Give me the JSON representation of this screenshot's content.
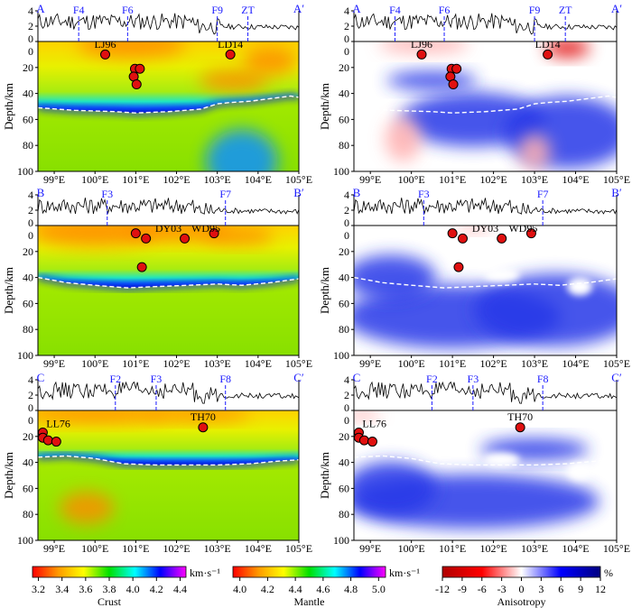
{
  "chart_data": {
    "type": "heatmap",
    "x_axis": {
      "ticks": [
        99,
        100,
        101,
        102,
        103,
        104,
        105
      ],
      "tick_suffix": "°E",
      "xlim": [
        98.6,
        105
      ]
    },
    "y_axis": {
      "label": "Depth/km",
      "ticks": [
        0,
        20,
        40,
        60,
        80,
        100
      ],
      "ylim": [
        0,
        100
      ]
    },
    "topo_axis": {
      "ticks": [
        0,
        2,
        4
      ],
      "ylim": [
        0,
        4
      ]
    },
    "profiles": [
      {
        "start": "A",
        "end": "A′",
        "faults": [
          {
            "name": "F4",
            "lon": 99.6
          },
          {
            "name": "F6",
            "lon": 100.8
          },
          {
            "name": "F9",
            "lon": 103.0
          },
          {
            "name": "ZT",
            "lon": 103.75
          }
        ],
        "events": [
          {
            "lon": 100.25,
            "depth": 10
          },
          {
            "lon": 100.98,
            "depth": 21
          },
          {
            "lon": 101.1,
            "depth": 21
          },
          {
            "lon": 100.95,
            "depth": 27
          },
          {
            "lon": 101.02,
            "depth": 33
          },
          {
            "lon": 103.32,
            "depth": 10
          }
        ],
        "event_labels": [
          {
            "text": "LJ96",
            "lon": 100.25,
            "depth": 2
          },
          {
            "text": "LD14",
            "lon": 103.32,
            "depth": 2
          }
        ],
        "moho": [
          [
            98.6,
            51
          ],
          [
            99.5,
            53
          ],
          [
            100.5,
            54
          ],
          [
            101,
            55
          ],
          [
            101.8,
            54
          ],
          [
            102.6,
            52
          ],
          [
            103.0,
            48
          ],
          [
            103.3,
            47
          ],
          [
            103.8,
            46
          ],
          [
            104.3,
            44
          ],
          [
            104.8,
            42
          ],
          [
            105,
            43
          ]
        ]
      },
      {
        "start": "B",
        "end": "B′",
        "faults": [
          {
            "name": "F3",
            "lon": 100.3
          },
          {
            "name": "F7",
            "lon": 103.2
          }
        ],
        "events": [
          {
            "lon": 101.0,
            "depth": 6
          },
          {
            "lon": 101.25,
            "depth": 10
          },
          {
            "lon": 101.15,
            "depth": 32
          },
          {
            "lon": 102.2,
            "depth": 10
          },
          {
            "lon": 102.92,
            "depth": 6
          }
        ],
        "event_labels": [
          {
            "text": "DY03",
            "lon": 101.8,
            "depth": 2
          },
          {
            "text": "WD95",
            "lon": 102.72,
            "depth": 2
          }
        ],
        "moho": [
          [
            98.6,
            40
          ],
          [
            99.3,
            44
          ],
          [
            100,
            46
          ],
          [
            100.8,
            48
          ],
          [
            101.5,
            47
          ],
          [
            102.3,
            46
          ],
          [
            103,
            45
          ],
          [
            103.6,
            46
          ],
          [
            104.3,
            44
          ],
          [
            105,
            41
          ]
        ]
      },
      {
        "start": "C",
        "end": "C′",
        "faults": [
          {
            "name": "F2",
            "lon": 100.5
          },
          {
            "name": "F3",
            "lon": 101.5
          },
          {
            "name": "F8",
            "lon": 103.2
          }
        ],
        "events": [
          {
            "lon": 98.72,
            "depth": 17
          },
          {
            "lon": 98.72,
            "depth": 21
          },
          {
            "lon": 98.85,
            "depth": 23
          },
          {
            "lon": 99.05,
            "depth": 24
          },
          {
            "lon": 102.65,
            "depth": 13
          }
        ],
        "event_labels": [
          {
            "text": "LL76",
            "lon": 99.1,
            "depth": 10
          },
          {
            "text": "TH70",
            "lon": 102.65,
            "depth": 5
          }
        ],
        "moho": [
          [
            98.6,
            36
          ],
          [
            99.3,
            35
          ],
          [
            100,
            37
          ],
          [
            100.7,
            41
          ],
          [
            101.5,
            42
          ],
          [
            102.3,
            42
          ],
          [
            103,
            42
          ],
          [
            103.8,
            41
          ],
          [
            104.5,
            39
          ],
          [
            105,
            38
          ]
        ]
      }
    ],
    "colorbars": [
      {
        "title": "Crust",
        "unit": "km·s⁻¹",
        "ticks": [
          "3.2",
          "3.4",
          "3.6",
          "3.8",
          "4.0",
          "4.2",
          "4.4"
        ],
        "range": [
          3.15,
          4.45
        ],
        "colors": [
          "#ff0000",
          "#ff9900",
          "#ffff00",
          "#00e000",
          "#00ffff",
          "#0000ff",
          "#ff00ff"
        ]
      },
      {
        "title": "Mantle",
        "unit": "km·s⁻¹",
        "ticks": [
          "4.0",
          "4.2",
          "4.4",
          "4.6",
          "4.8",
          "5.0"
        ],
        "range": [
          3.95,
          5.05
        ],
        "colors": [
          "#ff0000",
          "#ff9900",
          "#ffff00",
          "#00e000",
          "#00ffff",
          "#0000ff",
          "#ff00ff"
        ]
      },
      {
        "title": "Anisotropy",
        "unit": "%",
        "ticks": [
          "-12",
          "-9",
          "-6",
          "-3",
          "0",
          "3",
          "6",
          "9",
          "12"
        ],
        "range": [
          -12,
          12
        ],
        "colors": [
          "#b00000",
          "#ff0000",
          "#ffffff",
          "#0000ff",
          "#000080"
        ]
      }
    ]
  }
}
